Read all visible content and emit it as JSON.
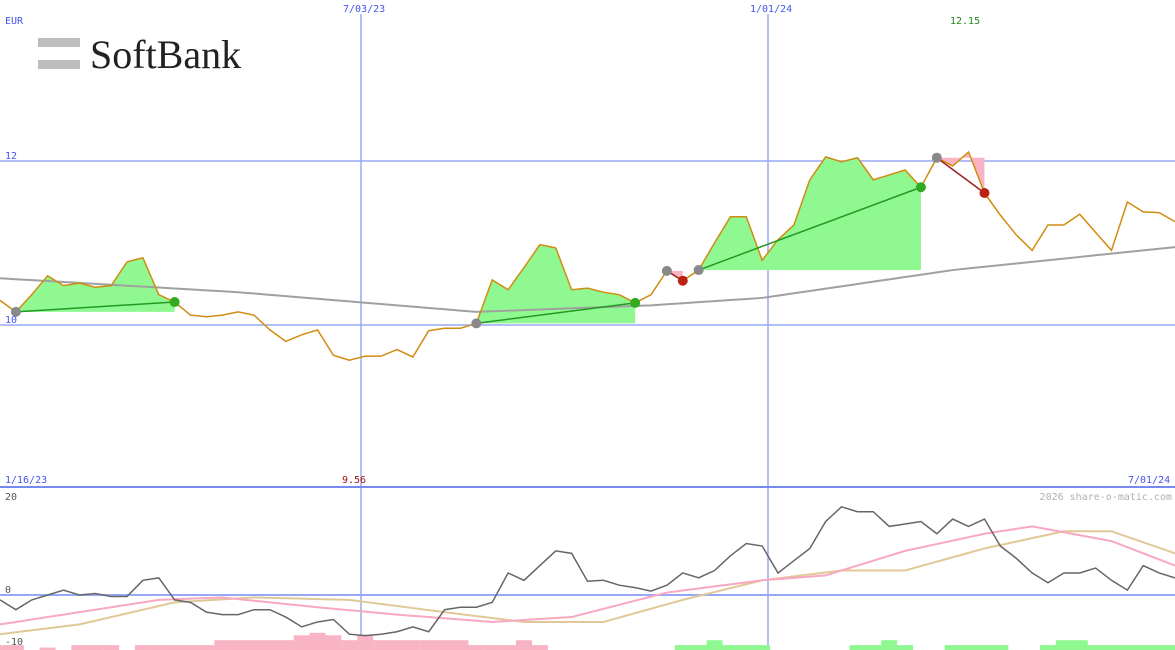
{
  "logo": {
    "text": "SoftBank"
  },
  "watermark": "2026 share-o-matic.com",
  "colors": {
    "grid": "#99a8f5",
    "axis_text": "#4455ee",
    "price": "#d08c10",
    "ma": "#a0a0a0",
    "gain_fill": "#90f890",
    "loss_fill": "#f8b4c4",
    "gain_line": "#229922",
    "loss_line": "#992222",
    "osc": "#666666",
    "osc_fast": "#f8a8c0",
    "osc_slow": "#e0c898",
    "hist_pos": "#90f890",
    "hist_neg": "#f8b4c4"
  },
  "chart_data": [
    {
      "type": "line",
      "currency_label": "EUR",
      "x_tick_labels": {
        "top": [
          "7/03/23",
          "1/01/24"
        ],
        "bottom_left": "1/16/23",
        "bottom_right": "7/01/24"
      },
      "y_ticks": [
        10,
        12
      ],
      "y_tick_labels": [
        "10",
        "12"
      ],
      "low_label": "9.56",
      "high_label": "12.15",
      "grid": true,
      "price": [
        10.3,
        10.16,
        10.37,
        10.6,
        10.48,
        10.51,
        10.46,
        10.48,
        10.77,
        10.82,
        10.37,
        10.28,
        10.12,
        10.1,
        10.12,
        10.16,
        10.12,
        9.94,
        9.8,
        9.88,
        9.94,
        9.63,
        9.57,
        9.62,
        9.62,
        9.7,
        9.61,
        9.93,
        9.96,
        9.96,
        10.02,
        10.55,
        10.43,
        10.7,
        10.98,
        10.94,
        10.43,
        10.45,
        10.4,
        10.37,
        10.27,
        10.37,
        10.66,
        10.54,
        10.67,
        11.0,
        11.32,
        11.32,
        10.79,
        11.04,
        11.22,
        11.77,
        12.05,
        11.99,
        12.04,
        11.77,
        11.83,
        11.89,
        11.68,
        12.04,
        11.94,
        12.11,
        11.61,
        11.34,
        11.1,
        10.91,
        11.22,
        11.22,
        11.35,
        11.13,
        10.91,
        11.5,
        11.38,
        11.37,
        11.26
      ],
      "moving_average": [
        [
          0,
          10.57
        ],
        [
          15,
          10.4
        ],
        [
          30,
          10.16
        ],
        [
          41,
          10.24
        ],
        [
          48,
          10.33
        ],
        [
          60,
          10.67
        ],
        [
          74,
          10.95
        ]
      ],
      "trades": [
        {
          "entry": 1,
          "exit": 11,
          "result": "gain"
        },
        {
          "entry": 30,
          "exit": 40,
          "result": "gain"
        },
        {
          "entry": 42,
          "exit": 43,
          "result": "loss"
        },
        {
          "entry": 44,
          "exit": 58,
          "result": "gain"
        },
        {
          "entry": 59,
          "exit": 62,
          "result": "loss"
        }
      ]
    },
    {
      "type": "line",
      "y_ticks": [
        20,
        0,
        -10
      ],
      "y_tick_labels": [
        "20",
        "0",
        "-10"
      ],
      "oscillator": [
        -1,
        -3,
        -1,
        0,
        1,
        0,
        0.3,
        -0.3,
        -0.3,
        3,
        3.5,
        -1,
        -1.5,
        -3.5,
        -4,
        -4,
        -3,
        -3,
        -4.5,
        -6.5,
        -5.5,
        -5,
        -8,
        -8.3,
        -8,
        -7.5,
        -6.5,
        -7.5,
        -3,
        -2.5,
        -2.5,
        -1.5,
        4.5,
        3,
        6,
        9,
        8.5,
        2.8,
        3,
        2,
        1.5,
        0.8,
        2,
        4.5,
        3.5,
        5,
        8,
        10.5,
        10,
        4.5,
        7,
        9.5,
        15,
        18,
        17,
        17,
        14,
        14.5,
        15,
        12.5,
        15.5,
        14,
        15.5,
        10,
        7.5,
        4.5,
        2.5,
        4.5,
        4.5,
        5.5,
        3,
        1,
        6,
        4.5,
        3.5
      ],
      "signal_fast": [
        [
          0,
          -6
        ],
        [
          5,
          -3.5
        ],
        [
          10,
          -1
        ],
        [
          14,
          -0.5
        ],
        [
          20,
          -2.5
        ],
        [
          25,
          -4
        ],
        [
          31,
          -5.5
        ],
        [
          36,
          -4.5
        ],
        [
          42,
          0.5
        ],
        [
          48,
          3
        ],
        [
          52,
          4
        ],
        [
          57,
          9
        ],
        [
          62,
          12.5
        ],
        [
          65,
          14
        ],
        [
          70,
          11
        ],
        [
          74,
          6
        ]
      ],
      "signal_slow": [
        [
          0,
          -8
        ],
        [
          5,
          -6
        ],
        [
          11,
          -1.5
        ],
        [
          16,
          -0.5
        ],
        [
          22,
          -1
        ],
        [
          28,
          -3.5
        ],
        [
          33,
          -5.5
        ],
        [
          38,
          -5.5
        ],
        [
          43,
          -1
        ],
        [
          48,
          3
        ],
        [
          53,
          5
        ],
        [
          57,
          5
        ],
        [
          62,
          9.5
        ],
        [
          67,
          13
        ],
        [
          70,
          13
        ],
        [
          74,
          8.5
        ]
      ],
      "histogram": [
        -1,
        -1,
        0,
        -0.5,
        0,
        -1,
        -1,
        -1,
        0,
        -1,
        -1,
        -1,
        -1,
        -1,
        -2,
        -2,
        -2,
        -2,
        -2,
        -3,
        -3.5,
        -3,
        -2,
        -3,
        -2,
        -2,
        -2,
        -2,
        -2,
        -2,
        -1,
        -1,
        -1,
        -2,
        -1,
        0,
        0,
        0,
        0,
        0,
        0,
        0,
        0,
        1,
        1,
        2,
        1,
        1,
        1,
        0,
        0,
        0,
        0,
        0,
        1,
        1,
        2,
        1,
        0,
        0,
        1,
        1,
        1,
        1,
        0,
        0,
        1,
        2,
        2,
        1,
        1,
        1,
        1,
        1,
        1
      ]
    }
  ]
}
